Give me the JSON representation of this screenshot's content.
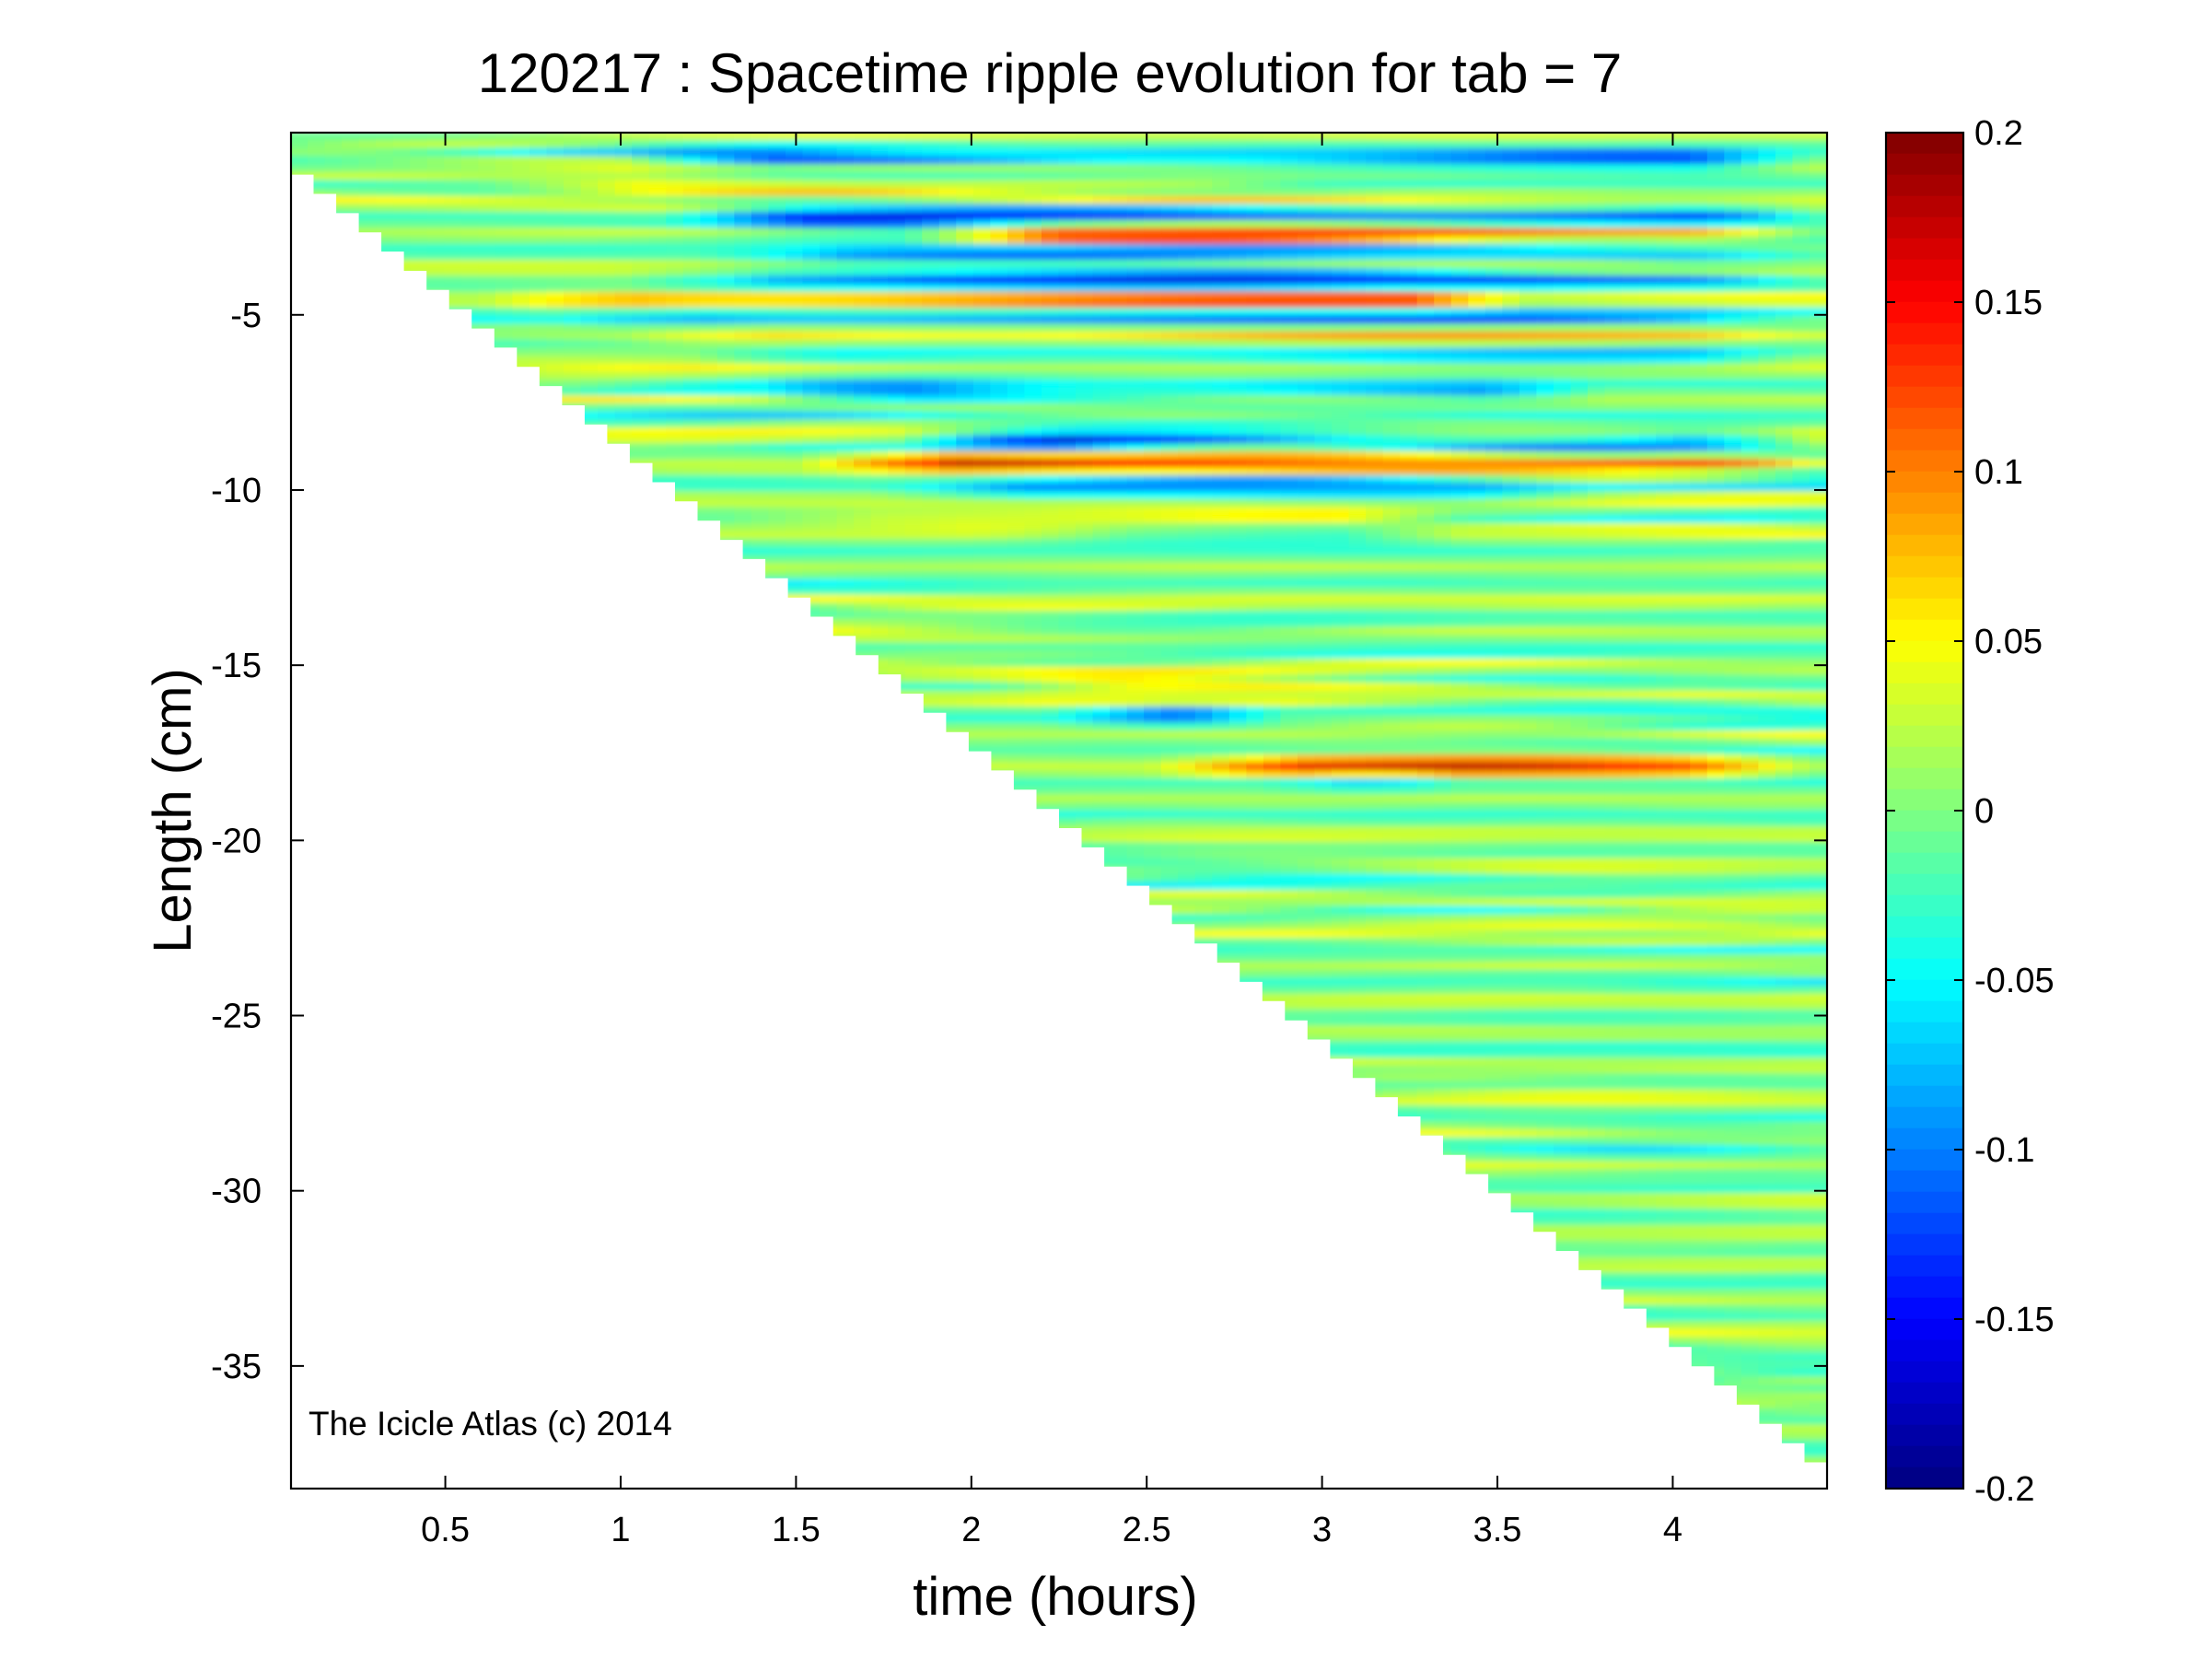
{
  "chart_data": {
    "type": "heatmap",
    "title": "120217 : Spacetime ripple evolution for tab = 7",
    "xlabel": "time (hours)",
    "ylabel": "Length (cm)",
    "xlim": [
      0.06,
      4.44
    ],
    "ylim": [
      -38.5,
      0.2
    ],
    "xticks": [
      0.5,
      1,
      1.5,
      2,
      2.5,
      3,
      3.5,
      4
    ],
    "yticks": [
      -5,
      -10,
      -15,
      -20,
      -25,
      -30,
      -35
    ],
    "colorbar": {
      "colormap": "jet",
      "clim": [
        -0.2,
        0.2
      ],
      "ticks": [
        0.2,
        0.15,
        0.1,
        0.05,
        0,
        -0.05,
        -0.1,
        -0.15,
        -0.2
      ]
    },
    "data_domain": {
      "description_visible": "Filled only where length >= -(tip length); tip grows roughly linearly with time",
      "tip_start": {
        "time": 0.06,
        "length": -1.0
      },
      "tip_end": {
        "time": 4.44,
        "length": -38.3
      }
    },
    "features": [
      {
        "length": -0.6,
        "amplitude": -0.12,
        "t_start": 1.0,
        "t_end": 4.4
      },
      {
        "length": -1.3,
        "amplitude": 0.07,
        "t_start": 0.6,
        "t_end": 3.0
      },
      {
        "length": -2.2,
        "amplitude": -0.15,
        "t_start": 1.1,
        "t_end": 4.4
      },
      {
        "length": -2.7,
        "amplitude": 0.15,
        "t_start": 1.8,
        "t_end": 4.4
      },
      {
        "length": -3.3,
        "amplitude": -0.09,
        "t_start": 1.2,
        "t_end": 4.4
      },
      {
        "length": -4.0,
        "amplitude": -0.16,
        "t_start": 1.0,
        "t_end": 4.4
      },
      {
        "length": -4.6,
        "amplitude": 0.13,
        "t_start": 0.6,
        "t_end": 3.6
      },
      {
        "length": -5.1,
        "amplitude": -0.1,
        "t_start": 0.8,
        "t_end": 4.4
      },
      {
        "length": -5.6,
        "amplitude": 0.07,
        "t_start": 1.0,
        "t_end": 4.4
      },
      {
        "length": -6.2,
        "amplitude": -0.08,
        "t_start": 1.2,
        "t_end": 4.4
      },
      {
        "length": -7.2,
        "amplitude": -0.11,
        "t_start": 1.4,
        "t_end": 3.8
      },
      {
        "length": -8.6,
        "amplitude": -0.17,
        "t_start": 1.8,
        "t_end": 4.4
      },
      {
        "length": -9.2,
        "amplitude": 0.17,
        "t_start": 1.5,
        "t_end": 4.4
      },
      {
        "length": -10.0,
        "amplitude": -0.09,
        "t_start": 1.7,
        "t_end": 3.8
      },
      {
        "length": -10.8,
        "amplitude": 0.08,
        "t_start": 1.3,
        "t_end": 3.4
      },
      {
        "length": -11.2,
        "amplitude": -0.07,
        "t_start": 2.0,
        "t_end": 3.4
      },
      {
        "length": -15.6,
        "amplitude": 0.06,
        "t_start": 2.0,
        "t_end": 4.4
      },
      {
        "length": -16.4,
        "amplitude": -0.11,
        "t_start": 2.2,
        "t_end": 2.9
      },
      {
        "length": -17.9,
        "amplitude": 0.14,
        "t_start": 2.5,
        "t_end": 4.4
      },
      {
        "length": -18.3,
        "amplitude": -0.08,
        "t_start": 2.8,
        "t_end": 3.4
      }
    ],
    "annotation": "The Icicle Atlas (c) 2014"
  }
}
